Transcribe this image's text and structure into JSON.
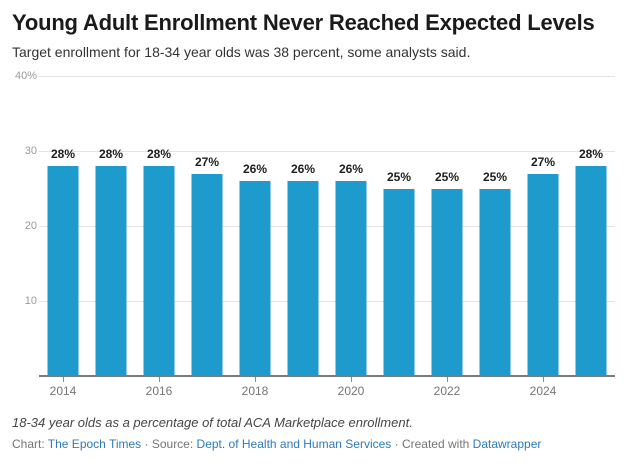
{
  "header": {
    "title": "Young Adult Enrollment Never Reached Expected Levels",
    "subtitle": "Target enrollment for 18-34 year olds was 38 percent, some analysts said."
  },
  "chart_data": {
    "type": "bar",
    "title": "Young Adult Enrollment Never Reached Expected Levels",
    "subtitle": "Target enrollment for 18-34 year olds was 38 percent, some analysts said.",
    "categories": [
      2014,
      2015,
      2016,
      2017,
      2018,
      2019,
      2020,
      2021,
      2022,
      2023,
      2024,
      2025
    ],
    "values": [
      28,
      28,
      28,
      27,
      26,
      26,
      26,
      25,
      25,
      25,
      27,
      28
    ],
    "value_labels": [
      "28%",
      "28%",
      "28%",
      "27%",
      "26%",
      "26%",
      "26%",
      "25%",
      "25%",
      "25%",
      "27%",
      "28%"
    ],
    "xlabel": "",
    "ylabel": "",
    "ylim": [
      0,
      40
    ],
    "yticks": [
      {
        "value": 40,
        "label": "40%"
      },
      {
        "value": 30,
        "label": "30"
      },
      {
        "value": 20,
        "label": "20"
      },
      {
        "value": 10,
        "label": "10"
      }
    ],
    "xticks": [
      2014,
      2016,
      2018,
      2020,
      2022,
      2024
    ],
    "grid": true,
    "legend": false,
    "bar_color": "#1f9acd"
  },
  "footer": {
    "note": "18-34 year olds as a percentage of total ACA Marketplace enrollment.",
    "credit_parts": [
      {
        "text": "Chart: "
      },
      {
        "link": "The Epoch Times"
      },
      {
        "text": " · Source: "
      },
      {
        "link": "Dept. of Health and Human Services"
      },
      {
        "text": " · Created with "
      },
      {
        "link": "Datawrapper"
      }
    ]
  }
}
